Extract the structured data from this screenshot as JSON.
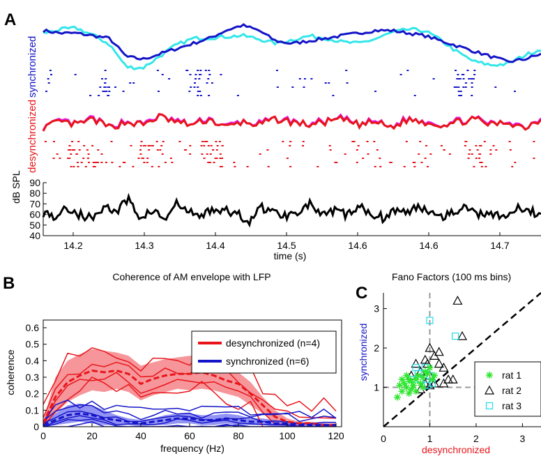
{
  "panel_a": {
    "letter": "A",
    "label_sync": "synchronized",
    "label_desync": "desynchronized",
    "ylabel": "dB SPL",
    "xlabel": "time (s)",
    "colors": {
      "sync": "#1414c8",
      "sync_alt": "#33e6ea",
      "desync": "#e8141a",
      "desync_alt": "#e61ae6",
      "spl": "#000000"
    }
  },
  "panel_b": {
    "letter": "B",
    "title": "Coherence of AM envelope with LFP",
    "legend": [
      "desynchronized (n=4)",
      "synchronized (n=6)"
    ],
    "colors": {
      "desync": "#e8141a",
      "desync_fill": "#f37378",
      "sync": "#1414c8",
      "sync_fill": "#6f6ff0"
    }
  },
  "panel_c": {
    "letter": "C",
    "title": "Fano Factors (100 ms bins)",
    "legend": [
      "rat 1",
      "rat 2",
      "rat 3"
    ],
    "colors": {
      "rat1": "#2ee62e",
      "rat2": "#000000",
      "rat3": "#25d9e6",
      "ref": "#999999"
    }
  },
  "chart_data": [
    {
      "type": "line",
      "panel": "A",
      "xlabel": "time (s)",
      "ylabel": "dB SPL",
      "x_ticks": [
        "14.2",
        "14.3",
        "14.4",
        "14.5",
        "14.6",
        "14.6",
        "14.7"
      ],
      "y_ticks": [
        "90",
        "80",
        "70",
        "60",
        "50",
        "40"
      ],
      "ylim": [
        40,
        90
      ],
      "xlim": [
        14.15,
        14.75
      ],
      "series": [
        {
          "name": "synchronized",
          "values": [
            70,
            69,
            69,
            68,
            67,
            60,
            59,
            61,
            63,
            65,
            67,
            70,
            72,
            70,
            66,
            65,
            66,
            67,
            68,
            69,
            70,
            70,
            69,
            68,
            66,
            64,
            62,
            60,
            58,
            59,
            61
          ]
        },
        {
          "name": "desynchronized",
          "values": [
            60,
            62,
            61,
            63,
            60,
            62,
            61,
            64,
            62,
            61,
            63,
            60,
            62,
            61,
            63,
            62,
            61,
            62,
            63,
            61,
            62,
            60,
            63,
            62,
            61,
            62,
            63,
            61,
            62,
            60,
            63
          ]
        },
        {
          "name": "dB SPL",
          "values": [
            62,
            58,
            66,
            60,
            56,
            68,
            62,
            74,
            57,
            64,
            55,
            70,
            62,
            58,
            66,
            63,
            60,
            54,
            67,
            62,
            59,
            64,
            70,
            58,
            63,
            60,
            66,
            62,
            57,
            65,
            61,
            68,
            63,
            59,
            64,
            66,
            60,
            62,
            58,
            65,
            63,
            60
          ]
        }
      ]
    },
    {
      "type": "line",
      "panel": "B",
      "title": "Coherence of AM envelope with LFP",
      "xlabel": "frequency (Hz)",
      "ylabel": "coherence",
      "xlim": [
        0,
        120
      ],
      "ylim": [
        0,
        0.6
      ],
      "x_ticks": [
        "0",
        "20",
        "40",
        "60",
        "80",
        "100",
        "120"
      ],
      "y_ticks": [
        "0",
        "0.1",
        "0.2",
        "0.3",
        "0.4",
        "0.5",
        "0.6"
      ],
      "x": [
        0,
        5,
        10,
        15,
        20,
        25,
        30,
        35,
        40,
        45,
        50,
        55,
        60,
        65,
        70,
        75,
        80,
        85,
        90,
        95,
        100,
        105,
        110,
        115,
        120
      ],
      "series": [
        {
          "name": "desynchronized (n=4)",
          "values": [
            0.02,
            0.18,
            0.27,
            0.31,
            0.34,
            0.33,
            0.34,
            0.32,
            0.26,
            0.29,
            0.31,
            0.32,
            0.32,
            0.33,
            0.31,
            0.28,
            0.26,
            0.2,
            0.13,
            0.06,
            0.03,
            0.02,
            0.02,
            0.01,
            0.01
          ]
        },
        {
          "name": "desynchronized upper",
          "values": [
            0.03,
            0.3,
            0.4,
            0.44,
            0.47,
            0.46,
            0.45,
            0.43,
            0.37,
            0.39,
            0.41,
            0.42,
            0.43,
            0.43,
            0.41,
            0.37,
            0.33,
            0.27,
            0.18,
            0.1,
            0.05,
            0.03,
            0.03,
            0.02,
            0.02
          ]
        },
        {
          "name": "desynchronized lower",
          "values": [
            0.01,
            0.08,
            0.15,
            0.19,
            0.22,
            0.21,
            0.23,
            0.21,
            0.16,
            0.19,
            0.21,
            0.23,
            0.22,
            0.23,
            0.22,
            0.2,
            0.18,
            0.13,
            0.08,
            0.03,
            0.01,
            0.01,
            0.01,
            0,
            0
          ]
        },
        {
          "name": "synchronized (n=6)",
          "values": [
            0.01,
            0.04,
            0.07,
            0.08,
            0.07,
            0.05,
            0.04,
            0.03,
            0.02,
            0.03,
            0.04,
            0.05,
            0.05,
            0.04,
            0.04,
            0.05,
            0.04,
            0.03,
            0.03,
            0.02,
            0.02,
            0.01,
            0.01,
            0.01,
            0.01
          ]
        },
        {
          "name": "synchronized upper",
          "values": [
            0.02,
            0.08,
            0.13,
            0.14,
            0.13,
            0.1,
            0.07,
            0.05,
            0.04,
            0.05,
            0.07,
            0.08,
            0.08,
            0.07,
            0.07,
            0.08,
            0.07,
            0.05,
            0.05,
            0.04,
            0.03,
            0.02,
            0.02,
            0.02,
            0.01
          ]
        },
        {
          "name": "synchronized lower",
          "values": [
            0,
            0.01,
            0.02,
            0.03,
            0.02,
            0.01,
            0.01,
            0.01,
            0,
            0.01,
            0.01,
            0.02,
            0.02,
            0.01,
            0.01,
            0.02,
            0.01,
            0.01,
            0.01,
            0,
            0,
            0,
            0,
            0,
            0
          ]
        }
      ]
    },
    {
      "type": "scatter",
      "panel": "C",
      "title": "Fano Factors (100 ms bins)",
      "xlabel": "desynchronized",
      "ylabel": "synchronized",
      "xlim": [
        0,
        3.4
      ],
      "ylim": [
        0,
        3.4
      ],
      "x_ticks": [
        "0",
        "1",
        "2",
        "3"
      ],
      "y_ticks": [
        "1",
        "2",
        "3"
      ],
      "series": [
        {
          "name": "rat 1",
          "points": [
            [
              0.3,
              0.75
            ],
            [
              0.4,
              0.9
            ],
            [
              0.45,
              1.1
            ],
            [
              0.5,
              1.0
            ],
            [
              0.55,
              1.2
            ],
            [
              0.6,
              0.95
            ],
            [
              0.35,
              1.05
            ],
            [
              0.6,
              1.15
            ],
            [
              0.7,
              1.2
            ],
            [
              0.75,
              1.3
            ],
            [
              0.8,
              1.1
            ],
            [
              0.85,
              1.25
            ],
            [
              0.9,
              1.4
            ],
            [
              0.95,
              1.35
            ],
            [
              1.0,
              1.5
            ],
            [
              1.05,
              1.2
            ],
            [
              0.5,
              1.3
            ],
            [
              0.65,
              1.05
            ],
            [
              0.7,
              0.9
            ],
            [
              0.4,
              1.2
            ],
            [
              0.85,
              1.0
            ],
            [
              1.1,
              1.3
            ],
            [
              0.55,
              0.85
            ]
          ]
        },
        {
          "name": "rat 2",
          "points": [
            [
              1.6,
              3.2
            ],
            [
              1.7,
              2.3
            ],
            [
              1.0,
              2.0
            ],
            [
              1.1,
              1.8
            ],
            [
              0.9,
              1.7
            ],
            [
              1.2,
              1.6
            ],
            [
              1.3,
              1.5
            ],
            [
              0.8,
              1.4
            ],
            [
              1.0,
              1.3
            ],
            [
              1.1,
              1.1
            ],
            [
              1.4,
              1.2
            ],
            [
              0.7,
              1.6
            ],
            [
              1.5,
              1.2
            ],
            [
              0.9,
              1.1
            ],
            [
              0.6,
              1.3
            ],
            [
              1.2,
              1.9
            ],
            [
              1.0,
              1.05
            ],
            [
              1.3,
              1.1
            ],
            [
              0.95,
              1.6
            ],
            [
              0.8,
              0.95
            ]
          ]
        },
        {
          "name": "rat 3",
          "points": [
            [
              1.0,
              2.7
            ],
            [
              1.55,
              2.3
            ],
            [
              0.7,
              1.5
            ],
            [
              0.9,
              1.5
            ],
            [
              1.0,
              1.3
            ],
            [
              0.8,
              1.2
            ],
            [
              0.95,
              1.05
            ],
            [
              0.6,
              1.2
            ],
            [
              1.05,
              1.1
            ],
            [
              0.75,
              1.35
            ]
          ]
        }
      ]
    }
  ]
}
